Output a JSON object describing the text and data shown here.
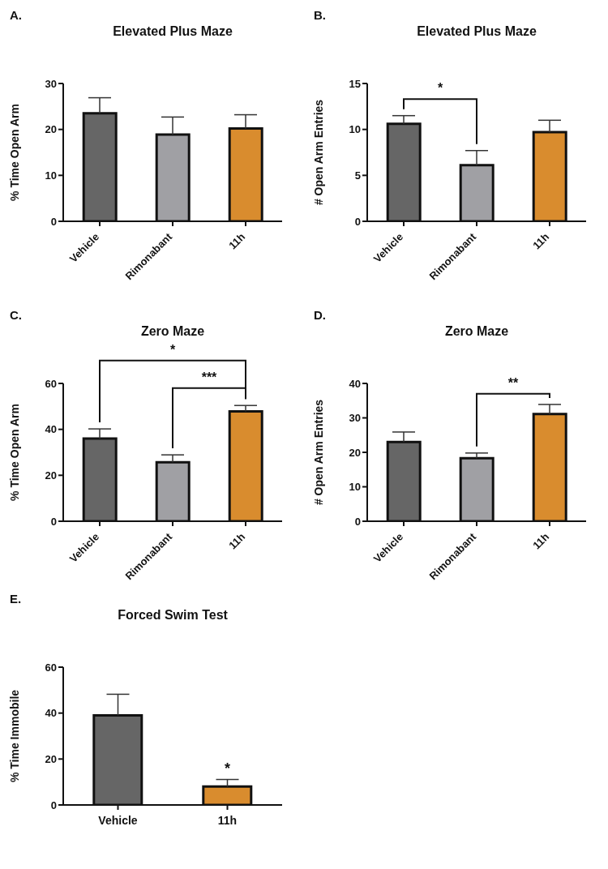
{
  "chart_data": [
    {
      "type": "bar",
      "title": "Elevated Plus Maze",
      "ylabel": "% Time Open Arm",
      "categories": [
        "Vehicle",
        "Rimonabant",
        "11h"
      ],
      "values": [
        23.5,
        18.9,
        20.2
      ],
      "errors": [
        [
          23.5,
          26.9
        ],
        [
          18.9,
          22.7
        ],
        [
          20.2,
          23.2
        ]
      ],
      "colors": [
        "#666666",
        "#a0a0a4",
        "#d98c2e"
      ],
      "ylim": [
        0,
        30
      ],
      "yticks": [
        0,
        10,
        20,
        30
      ],
      "annotations": [
        "A."
      ]
    },
    {
      "type": "bar",
      "title": "Elevated Plus Maze",
      "ylabel": "# Open Arm Entries",
      "categories": [
        "Vehicle",
        "Rimonabant",
        "11h"
      ],
      "values": [
        10.6,
        6.1,
        9.7
      ],
      "errors": [
        [
          10.6,
          11.5
        ],
        [
          6.1,
          7.7
        ],
        [
          9.7,
          11.0
        ]
      ],
      "colors": [
        "#666666",
        "#a0a0a4",
        "#d98c2e"
      ],
      "ylim": [
        0,
        15
      ],
      "yticks": [
        0,
        5,
        10,
        15
      ],
      "annotations": [
        "B.",
        "*"
      ]
    },
    {
      "type": "bar",
      "title": "Zero Maze",
      "ylabel": "% Time Open Arm",
      "categories": [
        "Vehicle",
        "Rimonabant",
        "11h"
      ],
      "values": [
        36,
        25.7,
        47.8
      ],
      "errors": [
        [
          36,
          40.2
        ],
        [
          25.7,
          28.9
        ],
        [
          47.8,
          50.4
        ]
      ],
      "colors": [
        "#666666",
        "#a0a0a4",
        "#d98c2e"
      ],
      "ylim": [
        0,
        60
      ],
      "yticks": [
        0,
        20,
        40,
        60
      ],
      "annotations": [
        "C.",
        "*",
        "***"
      ]
    },
    {
      "type": "bar",
      "title": "Zero Maze",
      "ylabel": "# Open Arm Entries",
      "categories": [
        "Vehicle",
        "Rimonabant",
        "11h"
      ],
      "values": [
        23,
        18.3,
        31.1
      ],
      "errors": [
        [
          23,
          25.9
        ],
        [
          18.3,
          19.8
        ],
        [
          31.1,
          33.9
        ]
      ],
      "colors": [
        "#666666",
        "#a0a0a4",
        "#d98c2e"
      ],
      "ylim": [
        0,
        40
      ],
      "yticks": [
        0,
        10,
        20,
        30,
        40
      ],
      "annotations": [
        "D.",
        "**"
      ]
    },
    {
      "type": "bar",
      "title": "Forced Swim Test",
      "ylabel": "% Time Immobile",
      "categories": [
        "Vehicle",
        "11h"
      ],
      "values": [
        39,
        8
      ],
      "errors": [
        [
          39,
          48.2
        ],
        [
          8,
          11.1
        ]
      ],
      "colors": [
        "#666666",
        "#d98c2e"
      ],
      "ylim": [
        0,
        60
      ],
      "yticks": [
        0,
        20,
        40,
        60
      ],
      "annotations": [
        "E.",
        "*"
      ]
    }
  ]
}
